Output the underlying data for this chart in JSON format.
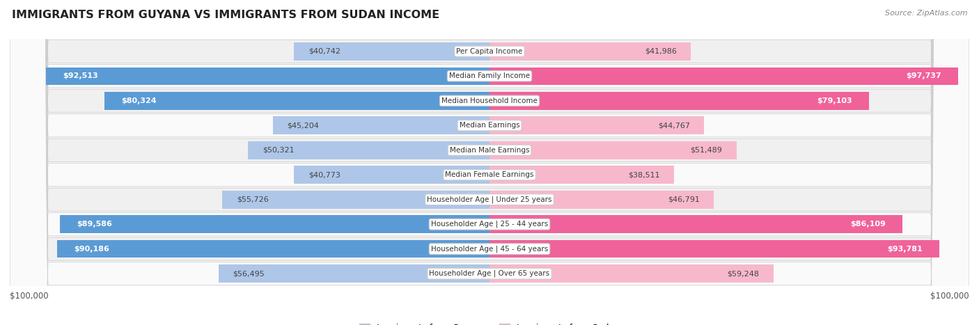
{
  "title": "IMMIGRANTS FROM GUYANA VS IMMIGRANTS FROM SUDAN INCOME",
  "source": "Source: ZipAtlas.com",
  "categories": [
    "Per Capita Income",
    "Median Family Income",
    "Median Household Income",
    "Median Earnings",
    "Median Male Earnings",
    "Median Female Earnings",
    "Householder Age | Under 25 years",
    "Householder Age | 25 - 44 years",
    "Householder Age | 45 - 64 years",
    "Householder Age | Over 65 years"
  ],
  "guyana_values": [
    40742,
    92513,
    80324,
    45204,
    50321,
    40773,
    55726,
    89586,
    90186,
    56495
  ],
  "sudan_values": [
    41986,
    97737,
    79103,
    44767,
    51489,
    38511,
    46791,
    86109,
    93781,
    59248
  ],
  "guyana_labels": [
    "$40,742",
    "$92,513",
    "$80,324",
    "$45,204",
    "$50,321",
    "$40,773",
    "$55,726",
    "$89,586",
    "$90,186",
    "$56,495"
  ],
  "sudan_labels": [
    "$41,986",
    "$97,737",
    "$79,103",
    "$44,767",
    "$51,489",
    "$38,511",
    "$46,791",
    "$86,109",
    "$93,781",
    "$59,248"
  ],
  "max_value": 100000,
  "guyana_color_light": "#aec6e8",
  "guyana_color_dark": "#5b9bd5",
  "sudan_color_light": "#f7b8cc",
  "sudan_color_dark": "#f0629a",
  "background_color": "#ffffff",
  "row_bg_odd": "#f0f0f0",
  "row_bg_even": "#fafafa",
  "legend_guyana": "Immigrants from Guyana",
  "legend_sudan": "Immigrants from Sudan",
  "xlabel_left": "$100,000",
  "xlabel_right": "$100,000",
  "inside_threshold": 65000
}
